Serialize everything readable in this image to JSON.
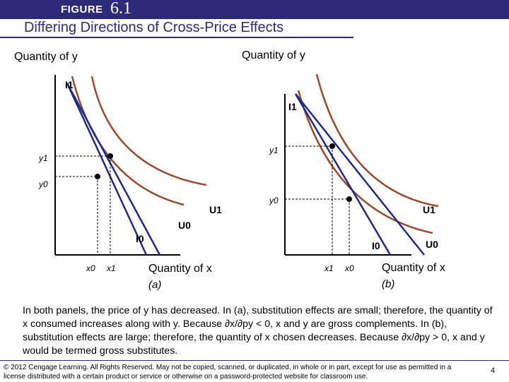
{
  "figure": {
    "word": "FIGURE",
    "number": "6.1",
    "title": "Differing Directions of Cross-Price Effects"
  },
  "panel_a": {
    "y_axis_label": "Quantity of y",
    "x_axis_label": "Quantity of x",
    "tag": "(a)",
    "budget_new": "I1",
    "budget_old": "I0",
    "utility_low": "U0",
    "utility_high": "U1",
    "y_ticks": [
      "y1",
      "y0"
    ],
    "x_ticks": [
      "x0",
      "x1"
    ]
  },
  "panel_b": {
    "y_axis_label": "Quantity of y",
    "x_axis_label": "Quantity of x",
    "tag": "(b)",
    "budget_new": "I1",
    "budget_old": "I0",
    "utility_low": "U0",
    "utility_high": "U1",
    "y_ticks": [
      "y1",
      "y0"
    ],
    "x_ticks": [
      "x1",
      "x0"
    ]
  },
  "caption": "In both panels, the price of y has decreased. In (a), substitution effects are small; therefore, the quantity of x consumed increases along with y. Because ∂x/∂py < 0, x and y are gross complements. In (b), substitution effects are large; therefore, the quantity of x chosen decreases. Because ∂x/∂py > 0, x and y would be termed gross substitutes.",
  "footer": {
    "copyright": "© 2012 Cengage Learning. All Rights Reserved. May not be copied, scanned, or duplicated, in whole or in part, except for use as permitted in a license distributed with a certain product or service or otherwise on a password-protected website for classroom use.",
    "page": "4"
  },
  "colors": {
    "header_bar": "#2e2a7a",
    "title_text": "#2e2a7a",
    "budget_line": "#1f2a8a",
    "indifference_curve": "#9b4a2b"
  }
}
